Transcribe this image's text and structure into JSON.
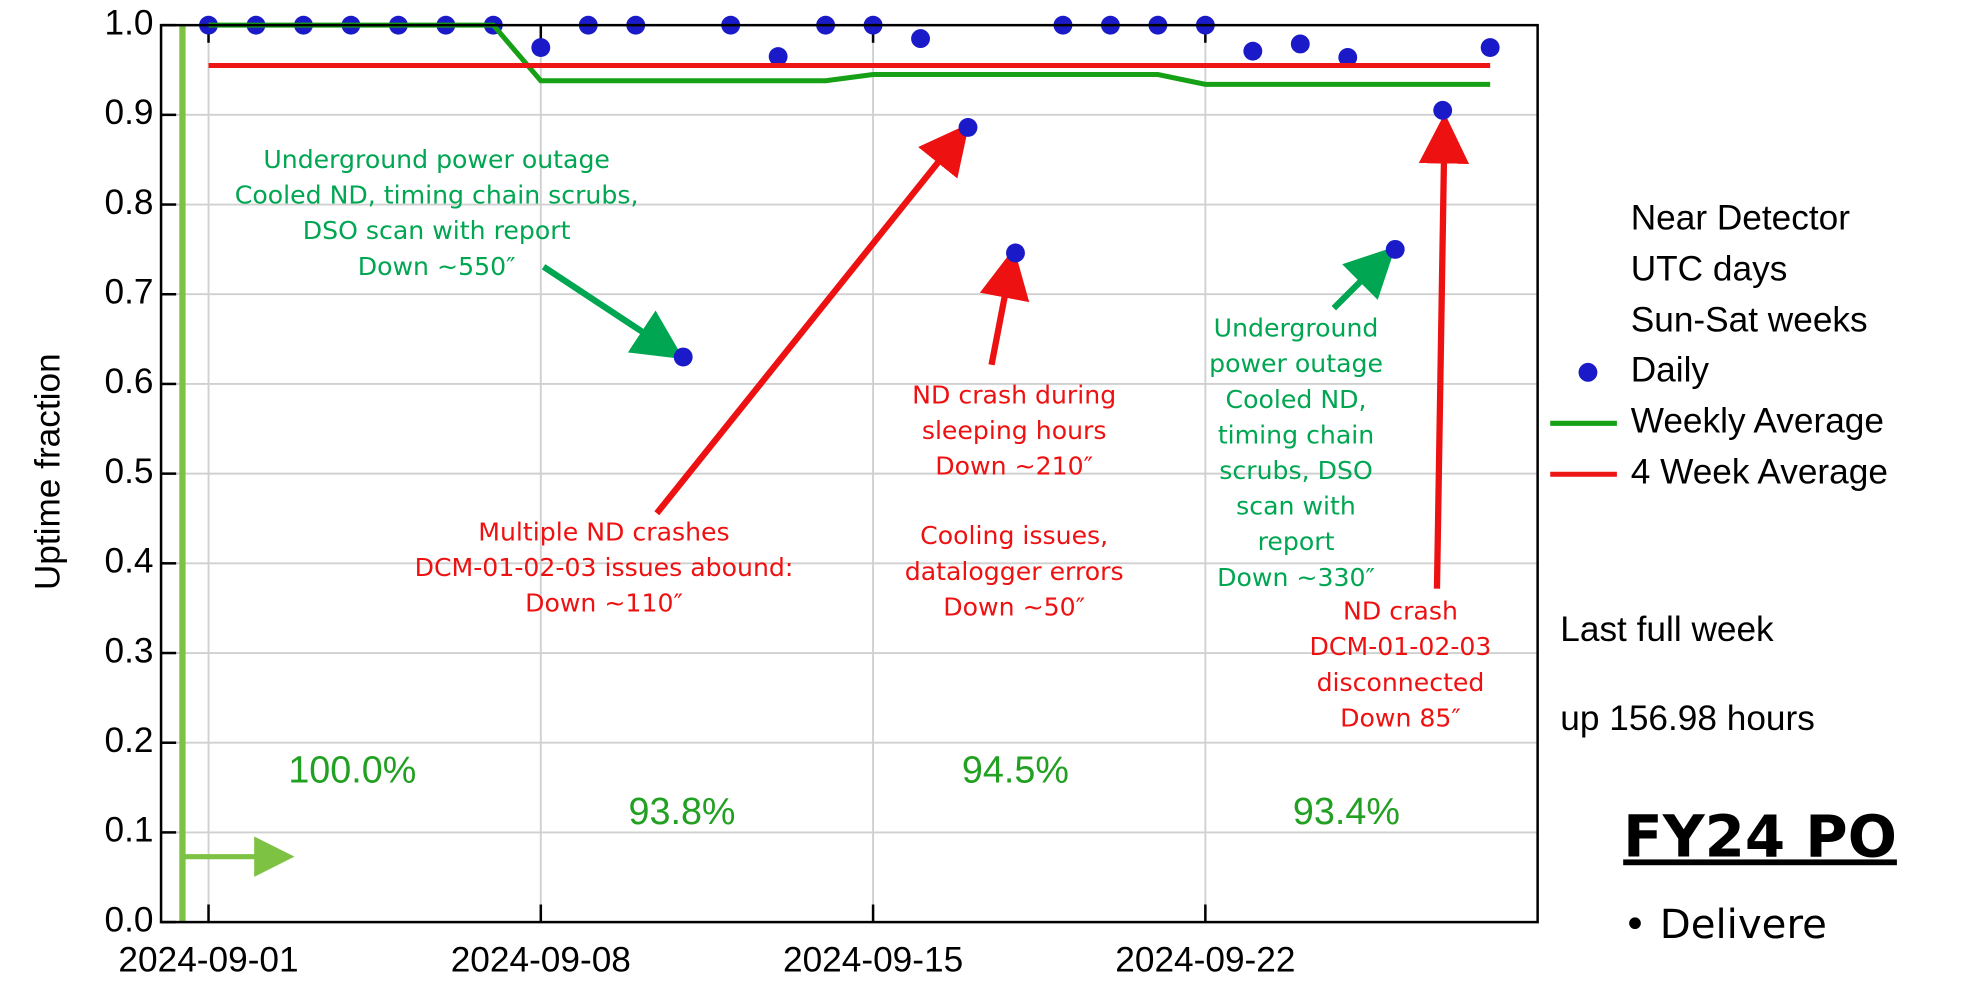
{
  "chart_data": {
    "type": "line",
    "y_label": "Uptime fraction",
    "x": [
      "2024-09-01",
      "2024-09-02",
      "2024-09-03",
      "2024-09-04",
      "2024-09-05",
      "2024-09-06",
      "2024-09-07",
      "2024-09-08",
      "2024-09-09",
      "2024-09-10",
      "2024-09-11",
      "2024-09-12",
      "2024-09-13",
      "2024-09-14",
      "2024-09-15",
      "2024-09-16",
      "2024-09-17",
      "2024-09-18",
      "2024-09-19",
      "2024-09-20",
      "2024-09-21",
      "2024-09-22",
      "2024-09-23",
      "2024-09-24",
      "2024-09-25",
      "2024-09-26",
      "2024-09-27",
      "2024-09-28"
    ],
    "series": [
      {
        "name": "Daily",
        "type": "scatter",
        "color": "#1a1ac8",
        "values": [
          1.0,
          1.0,
          1.0,
          1.0,
          1.0,
          1.0,
          1.0,
          0.975,
          1.0,
          1.0,
          0.63,
          1.0,
          0.965,
          1.0,
          1.0,
          0.985,
          0.886,
          0.746,
          1.0,
          1.0,
          1.0,
          1.0,
          0.971,
          0.979,
          0.964,
          0.75,
          0.905,
          0.975
        ]
      },
      {
        "name": "Weekly Average",
        "type": "line",
        "color": "#15a015",
        "values": [
          1.0,
          1.0,
          1.0,
          1.0,
          1.0,
          1.0,
          1.0,
          0.938,
          0.938,
          0.938,
          0.938,
          0.938,
          0.938,
          0.938,
          0.945,
          0.945,
          0.945,
          0.945,
          0.945,
          0.945,
          0.945,
          0.934,
          0.934,
          0.934,
          0.934,
          0.934,
          0.934,
          0.934
        ]
      },
      {
        "name": "4 Week Average",
        "type": "line",
        "color": "#ee1515",
        "values": [
          0.955,
          0.955,
          0.955,
          0.955,
          0.955,
          0.955,
          0.955,
          0.955,
          0.955,
          0.955,
          0.955,
          0.955,
          0.955,
          0.955,
          0.955,
          0.955,
          0.955,
          0.955,
          0.955,
          0.955,
          0.955,
          0.955,
          0.955,
          0.955,
          0.955,
          0.955,
          0.955,
          0.955
        ]
      }
    ],
    "xlim": [
      "2024-08-31",
      "2024-09-29"
    ],
    "xticks": [
      "2024-09-01",
      "2024-09-08",
      "2024-09-15",
      "2024-09-22"
    ],
    "ylim": [
      0,
      1
    ],
    "yticks": [
      {
        "value": 0,
        "label": "0.0"
      },
      0.1,
      0.2,
      0.3,
      0.4,
      0.5,
      0.6,
      0.7,
      0.8,
      0.9,
      {
        "value": 1,
        "label": "1.0"
      }
    ],
    "grid": true,
    "legend_position": "right",
    "legend_header": [
      "Near Detector",
      "UTC days",
      "Sun-Sat weeks"
    ],
    "summary": [
      "Last full week",
      "up 156.98 hours"
    ],
    "week_labels": [
      "100.0%",
      "93.8%",
      "94.5%",
      "93.4%"
    ],
    "annotations": [
      {
        "color": "#00a651",
        "lines": [
          "Underground power outage",
          "Cooled ND, timing chain scrubs,",
          "DSO scan with report",
          "Down ~550″"
        ]
      },
      {
        "color": "#ee1111",
        "lines": [
          "Multiple ND crashes",
          "DCM-01-02-03 issues abound:",
          "Down ~110″"
        ]
      },
      {
        "color": "#ee1111",
        "lines": [
          "ND crash during",
          "sleeping hours",
          "Down ~210″"
        ]
      },
      {
        "color": "#ee1111",
        "lines": [
          "Cooling issues,",
          "datalogger errors",
          "Down ~50″"
        ]
      },
      {
        "color": "#00a651",
        "lines": [
          "Underground",
          "power outage",
          "Cooled ND,",
          "timing chain",
          "scrubs, DSO",
          "scan with",
          "report",
          "Down ~330″"
        ]
      },
      {
        "color": "#ee1111",
        "lines": [
          "ND crash",
          "DCM-01-02-03",
          "disconnected",
          "Down 85″"
        ]
      }
    ]
  },
  "slide": {
    "heading": "FY24 PO",
    "bullet": "• Delivere"
  }
}
